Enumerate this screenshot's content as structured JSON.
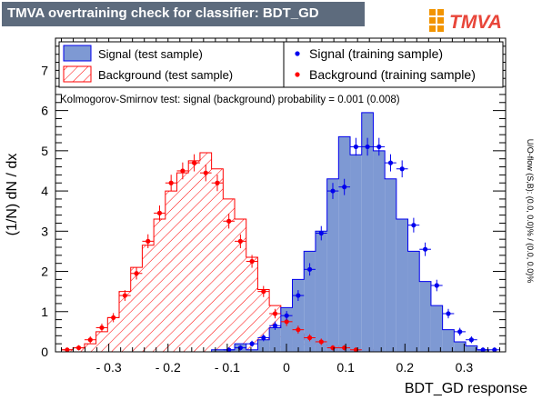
{
  "window_title": "TMVA overtraining check for classifier: BDT_GD",
  "logo_text": "TMVA",
  "side_note": "U/O-flow (S,B): (0.0, 0.0)% / (0.0, 0.0)%",
  "colors": {
    "title_bg": "#5d6b7d",
    "signal_fill": "#7e99d3",
    "signal_line": "#0000ee",
    "background_hatch": "#ff0000",
    "signal_points": "#0000ee",
    "background_points": "#ff0000",
    "logo_orange": "#f29400"
  },
  "chart_data": {
    "type": "histogram",
    "xlabel": "BDT_GD response",
    "ylabel": "(1/N) dN / dx",
    "xlim": [
      -0.39,
      0.37
    ],
    "ylim": [
      0,
      7.8
    ],
    "x_ticks": [
      -0.3,
      -0.2,
      -0.1,
      0,
      0.1,
      0.2,
      0.3
    ],
    "x_tick_labels": [
      "- 0.3",
      "- 0.2",
      "- 0.1",
      "0",
      "0.1",
      "0.2",
      "0.3"
    ],
    "y_ticks": [
      0,
      1,
      2,
      3,
      4,
      5,
      6,
      7
    ],
    "annotation": "Kolmogorov-Smirnov test: signal (background) probability = 0.001 (0.008)",
    "legend": [
      {
        "label": "Signal (test sample)",
        "kind": "signal-fill"
      },
      {
        "label": "Signal (training sample)",
        "kind": "signal-point"
      },
      {
        "label": "Background (test sample)",
        "kind": "background-hatch"
      },
      {
        "label": "Background (training sample)",
        "kind": "background-point"
      }
    ],
    "bin_edges": [
      -0.38,
      -0.3605,
      -0.341,
      -0.3215,
      -0.302,
      -0.2825,
      -0.263,
      -0.2435,
      -0.224,
      -0.2045,
      -0.185,
      -0.1655,
      -0.146,
      -0.1265,
      -0.107,
      -0.0875,
      -0.068,
      -0.0485,
      -0.029,
      -0.0095,
      0.01,
      0.0295,
      0.049,
      0.0685,
      0.088,
      0.1075,
      0.127,
      0.1465,
      0.166,
      0.1855,
      0.205,
      0.2245,
      0.244,
      0.2635,
      0.283,
      0.3025,
      0.322,
      0.3415,
      0.361
    ],
    "series": [
      {
        "name": "Signal (test sample)",
        "kind": "hist-fill",
        "values": [
          0,
          0,
          0,
          0,
          0,
          0,
          0,
          0,
          0,
          0,
          0,
          0,
          0,
          0.05,
          0.05,
          0.2,
          0.05,
          0.3,
          0.6,
          1.1,
          1.8,
          2.5,
          3.0,
          4.3,
          5.35,
          4.9,
          5.95,
          5.0,
          4.3,
          3.3,
          2.5,
          1.75,
          1.15,
          0.55,
          0.25,
          0.15,
          0.05,
          0
        ]
      },
      {
        "name": "Background (test sample)",
        "kind": "hist-hatch",
        "values": [
          0.05,
          0.1,
          0.2,
          0.5,
          0.85,
          1.5,
          2.1,
          2.65,
          3.3,
          4.0,
          4.45,
          4.75,
          4.95,
          4.55,
          3.8,
          3.3,
          2.35,
          1.55,
          1.15,
          0.95,
          0.45,
          0.3,
          0.2,
          0.15,
          0.1,
          0.05,
          0.05,
          0,
          0,
          0,
          0,
          0,
          0,
          0,
          0,
          0,
          0,
          0
        ]
      },
      {
        "name": "Signal (training sample)",
        "kind": "points",
        "values": [
          0,
          0,
          0,
          0,
          0,
          0,
          0,
          0,
          0,
          0,
          0,
          0,
          0,
          0,
          0.05,
          0.1,
          0.2,
          0.35,
          0.65,
          0.9,
          1.4,
          2.05,
          2.95,
          4.0,
          4.1,
          5.1,
          5.1,
          5.1,
          4.7,
          4.55,
          3.15,
          2.55,
          1.65,
          0.95,
          0.5,
          0.3,
          0.05,
          0.05
        ]
      },
      {
        "name": "Background (training sample)",
        "kind": "points",
        "values": [
          0.05,
          0.1,
          0.3,
          0.6,
          0.85,
          1.4,
          1.95,
          2.75,
          3.45,
          4.2,
          4.5,
          4.7,
          4.45,
          4.2,
          3.25,
          2.75,
          2.25,
          1.5,
          0.95,
          0.75,
          0.55,
          0.35,
          0.25,
          0.1,
          0.1,
          0.05,
          0,
          0,
          0,
          0,
          0,
          0,
          0,
          0,
          0,
          0,
          0,
          0
        ]
      }
    ]
  }
}
